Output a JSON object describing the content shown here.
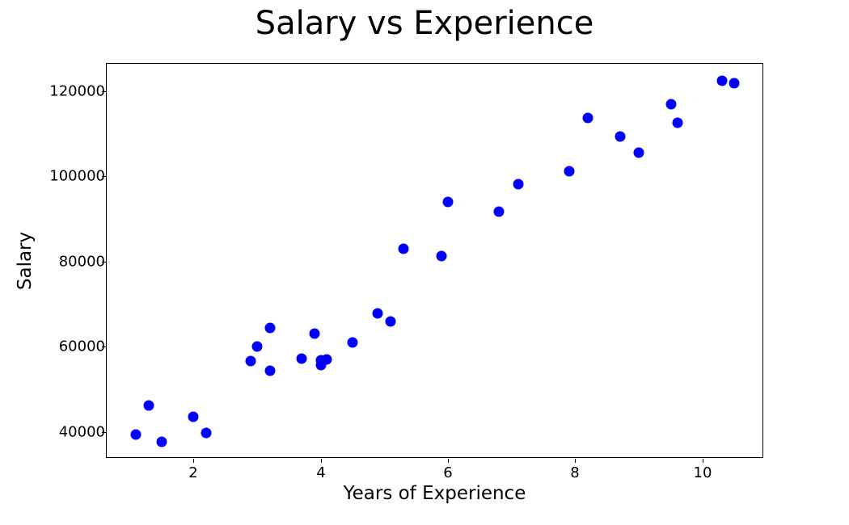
{
  "chart_data": {
    "type": "scatter",
    "title": "Salary vs Experience",
    "xlabel": "Years of Experience",
    "ylabel": "Salary",
    "xlim": [
      0.6,
      11.0
    ],
    "ylim": [
      33500,
      126500
    ],
    "x_ticks": [
      2,
      4,
      6,
      8,
      10
    ],
    "y_ticks": [
      40000,
      60000,
      80000,
      100000,
      120000
    ],
    "grid": false,
    "legend": null,
    "marker_color": "#0000ff",
    "series": [
      {
        "name": "Salary",
        "points": [
          {
            "x": 1.1,
            "y": 39343
          },
          {
            "x": 1.3,
            "y": 46205
          },
          {
            "x": 1.5,
            "y": 37731
          },
          {
            "x": 2.0,
            "y": 43525
          },
          {
            "x": 2.2,
            "y": 39891
          },
          {
            "x": 2.9,
            "y": 56642
          },
          {
            "x": 3.0,
            "y": 60150
          },
          {
            "x": 3.2,
            "y": 54445
          },
          {
            "x": 3.2,
            "y": 64445
          },
          {
            "x": 3.7,
            "y": 57189
          },
          {
            "x": 3.9,
            "y": 63218
          },
          {
            "x": 4.0,
            "y": 55794
          },
          {
            "x": 4.0,
            "y": 56957
          },
          {
            "x": 4.1,
            "y": 57081
          },
          {
            "x": 4.5,
            "y": 61111
          },
          {
            "x": 4.9,
            "y": 67938
          },
          {
            "x": 5.1,
            "y": 66029
          },
          {
            "x": 5.3,
            "y": 83088
          },
          {
            "x": 5.9,
            "y": 81363
          },
          {
            "x": 6.0,
            "y": 93940
          },
          {
            "x": 6.8,
            "y": 91738
          },
          {
            "x": 7.1,
            "y": 98273
          },
          {
            "x": 7.9,
            "y": 101302
          },
          {
            "x": 8.2,
            "y": 113812
          },
          {
            "x": 8.7,
            "y": 109431
          },
          {
            "x": 9.0,
            "y": 105582
          },
          {
            "x": 9.5,
            "y": 116969
          },
          {
            "x": 9.6,
            "y": 112635
          },
          {
            "x": 10.3,
            "y": 122391
          },
          {
            "x": 10.5,
            "y": 121872
          }
        ]
      }
    ]
  },
  "labels": {
    "title": "Salary vs Experience",
    "xlabel": "Years of Experience",
    "ylabel": "Salary",
    "xticks": [
      "2",
      "4",
      "6",
      "8",
      "10"
    ],
    "yticks": [
      "120000",
      "100000",
      "80000",
      "60000",
      "40000"
    ]
  }
}
